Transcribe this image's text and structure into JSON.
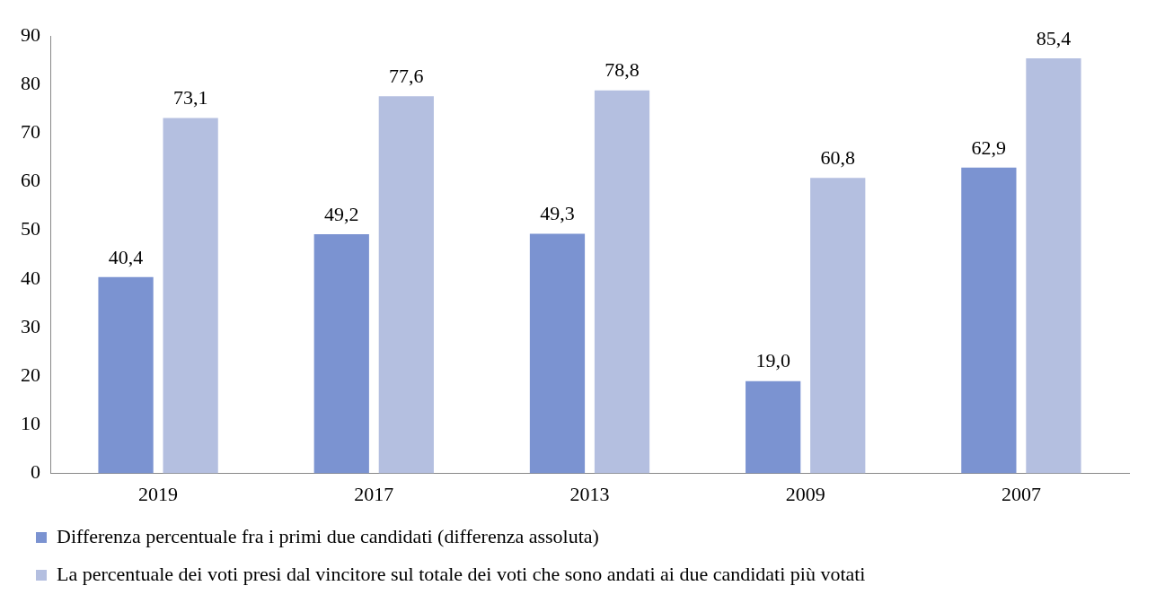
{
  "chart_data": {
    "type": "bar",
    "categories": [
      "2019",
      "2017",
      "2013",
      "2009",
      "2007"
    ],
    "series": [
      {
        "name": "Differenza percentuale fra i primi due candidati (differenza assoluta)",
        "color": "#7b93d1",
        "values": [
          40.4,
          49.2,
          49.3,
          19.0,
          62.9
        ],
        "value_labels": [
          "40,4",
          "49,2",
          "49,3",
          "19,0",
          "62,9"
        ]
      },
      {
        "name": "La percentuale dei voti presi dal vincitore sul totale dei voti che sono andati ai due candidati più votati",
        "color": "#b4bfe0",
        "values": [
          73.1,
          77.6,
          78.8,
          60.8,
          85.4
        ],
        "value_labels": [
          "73,1",
          "77,6",
          "78,8",
          "60,8",
          "85,4"
        ]
      }
    ],
    "ylim": [
      0,
      90
    ],
    "yticks": [
      0,
      10,
      20,
      30,
      40,
      50,
      60,
      70,
      80,
      90
    ],
    "grid": false,
    "legend": "bottom"
  }
}
